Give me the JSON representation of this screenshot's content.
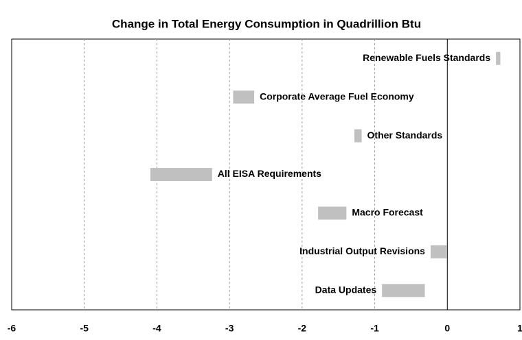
{
  "chart_data": {
    "type": "floating-bar",
    "title": "Change in Total Energy Consumption in Quadrillion Btu",
    "categories": [
      "Renewable Fuels Standards",
      "Corporate Average Fuel Economy",
      "Other Standards",
      "All EISA Requirements",
      "Macro Forecast",
      "Industrial Output Revisions",
      "Data Updates"
    ],
    "starts": [
      0.67,
      -2.95,
      -1.28,
      -4.09,
      -1.78,
      -0.23,
      -0.9
    ],
    "ends": [
      0.73,
      -2.66,
      -1.18,
      -3.24,
      -1.39,
      -0.01,
      -0.31
    ],
    "label_positions": [
      "left",
      "right",
      "right",
      "right",
      "right",
      "left",
      "left"
    ],
    "color": "#c0c0c0",
    "xlim": [
      -6,
      1
    ],
    "xticks": [
      -6,
      -5,
      -4,
      -3,
      -2,
      -1,
      0,
      1
    ],
    "grid": true
  }
}
